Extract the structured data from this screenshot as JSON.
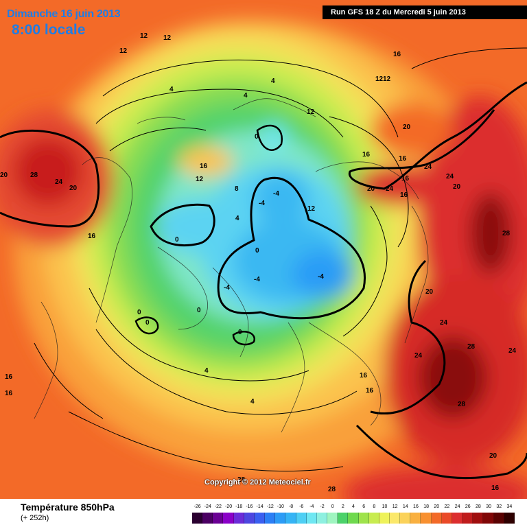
{
  "header": {
    "date_label": "Dimanche 16 juin 2013",
    "time_label": "8:00 locale",
    "run_label": "Run GFS 18 Z du Mercredi 5 juin 2013"
  },
  "map": {
    "copyright": "Copyright © 2012 Meteociel.fr",
    "isotherm_labels": [
      {
        "text": "12"
      },
      {
        "text": "12"
      },
      {
        "text": "12"
      },
      {
        "text": "16"
      },
      {
        "text": "12"
      },
      {
        "text": "12"
      },
      {
        "text": "4"
      },
      {
        "text": "4"
      },
      {
        "text": "4"
      },
      {
        "text": "12"
      },
      {
        "text": "20"
      },
      {
        "text": "0"
      },
      {
        "text": "16"
      },
      {
        "text": "16"
      },
      {
        "text": "16"
      },
      {
        "text": "24"
      },
      {
        "text": "20"
      },
      {
        "text": "28"
      },
      {
        "text": "24"
      },
      {
        "text": "20"
      },
      {
        "text": "12"
      },
      {
        "text": "8"
      },
      {
        "text": "-4"
      },
      {
        "text": "-4"
      },
      {
        "text": "20"
      },
      {
        "text": "24"
      },
      {
        "text": "16"
      },
      {
        "text": "24"
      },
      {
        "text": "20"
      },
      {
        "text": "16"
      },
      {
        "text": "12"
      },
      {
        "text": "4"
      },
      {
        "text": "0"
      },
      {
        "text": "16"
      },
      {
        "text": "0"
      },
      {
        "text": "28"
      },
      {
        "text": "-4"
      },
      {
        "text": "-4"
      },
      {
        "text": "-4"
      },
      {
        "text": "20"
      },
      {
        "text": "0"
      },
      {
        "text": "0"
      },
      {
        "text": "0"
      },
      {
        "text": "0"
      },
      {
        "text": "24"
      },
      {
        "text": "28"
      },
      {
        "text": "24"
      },
      {
        "text": "24"
      },
      {
        "text": "16"
      },
      {
        "text": "16"
      },
      {
        "text": "4"
      },
      {
        "text": "16"
      },
      {
        "text": "16"
      },
      {
        "text": "28"
      },
      {
        "text": "4"
      },
      {
        "text": "20"
      },
      {
        "text": "28"
      },
      {
        "text": "28"
      },
      {
        "text": "16"
      }
    ]
  },
  "legend": {
    "parameter": "Température 850hPa",
    "lead_time": "(+ 252h)",
    "scale_values": [
      "-26",
      "-24",
      "-22",
      "-20",
      "-18",
      "-16",
      "-14",
      "-12",
      "-10",
      "-8",
      "-6",
      "-4",
      "-2",
      "0",
      "2",
      "4",
      "6",
      "8",
      "10",
      "12",
      "14",
      "16",
      "18",
      "20",
      "22",
      "24",
      "26",
      "28",
      "30",
      "32",
      "34"
    ],
    "scale_colors": [
      "#2a0030",
      "#4b0063",
      "#6a0094",
      "#8a00c8",
      "#6b2cd8",
      "#4d46e0",
      "#3a5ff0",
      "#2b7ff5",
      "#2c9cf6",
      "#35b4f5",
      "#4ecff4",
      "#6fe7f2",
      "#8ef0e0",
      "#9ff5c0",
      "#4cd26a",
      "#6fd94e",
      "#9fe34c",
      "#c8ec50",
      "#eef25a",
      "#fbe86a",
      "#fbd25a",
      "#f9b040",
      "#f89030",
      "#f36a28",
      "#ea4a28",
      "#dc2e2e",
      "#c01c1c",
      "#a00e0e",
      "#800606",
      "#5a0202",
      "#2e0000"
    ]
  }
}
